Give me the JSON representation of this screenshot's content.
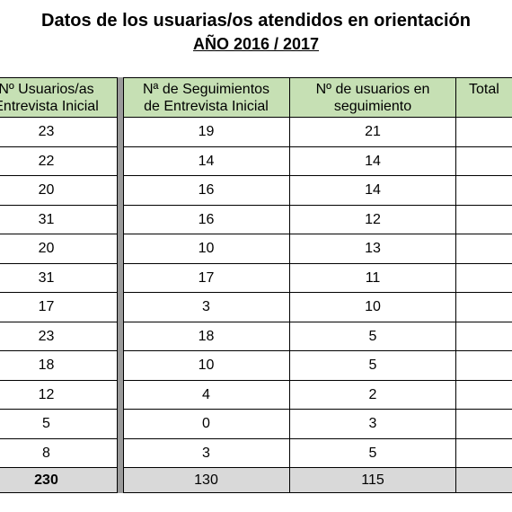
{
  "title": "Datos de los usuarias/os atendidos en orientación",
  "subtitle": "AÑO 2016 / 2017",
  "table": {
    "headers": [
      [
        "Nº Usuarios/as",
        "Entrevista Inicial"
      ],
      [
        "Nª de Seguimientos",
        "de Entrevista Inicial"
      ],
      [
        "Nº de usuarios en",
        "seguimiento"
      ],
      [
        "Total"
      ]
    ],
    "rows": [
      [
        "23",
        "19",
        "21"
      ],
      [
        "22",
        "14",
        "14"
      ],
      [
        "20",
        "16",
        "14"
      ],
      [
        "31",
        "16",
        "12"
      ],
      [
        "20",
        "10",
        "13"
      ],
      [
        "31",
        "17",
        "11"
      ],
      [
        "17",
        "3",
        "10"
      ],
      [
        "23",
        "18",
        "5"
      ],
      [
        "18",
        "10",
        "5"
      ],
      [
        "12",
        "4",
        "2"
      ],
      [
        "5",
        "0",
        "3"
      ],
      [
        "8",
        "3",
        "5"
      ]
    ],
    "total": [
      "230",
      "130",
      "115"
    ]
  }
}
